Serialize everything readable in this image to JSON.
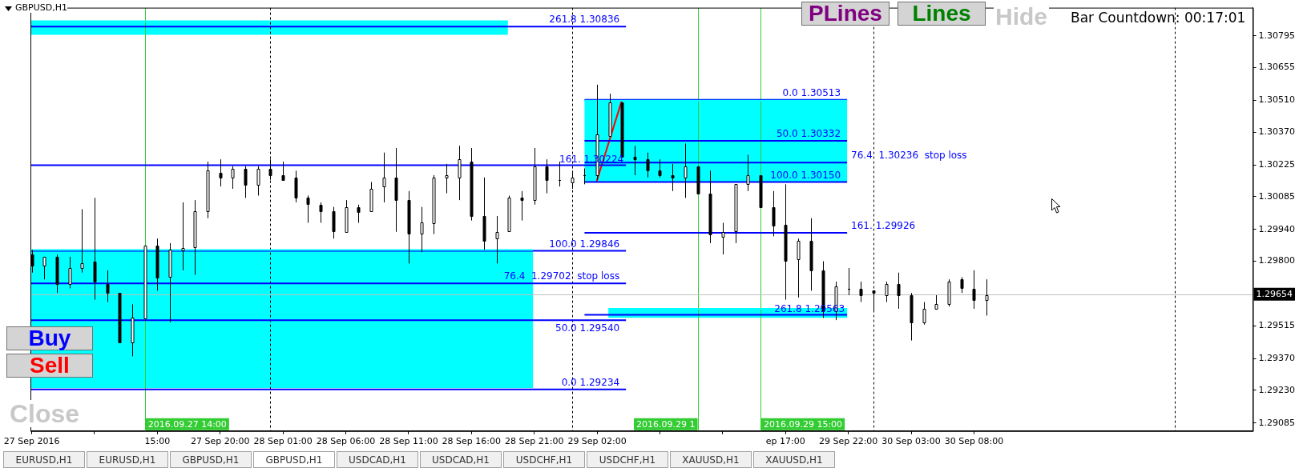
{
  "chart_data": {
    "type": "candlestick",
    "title": "GBPUSD,H1",
    "marker": "none",
    "x": [
      "2016-09-27T05:00",
      "2016-09-27T06:00",
      "2016-09-27T07:00",
      "2016-09-27T08:00",
      "2016-09-27T09:00",
      "2016-09-27T10:00",
      "2016-09-27T11:00",
      "2016-09-27T12:00",
      "2016-09-27T13:00",
      "2016-09-27T14:00",
      "2016-09-27T15:00",
      "2016-09-27T16:00",
      "2016-09-27T17:00",
      "2016-09-27T18:00",
      "2016-09-27T19:00",
      "2016-09-27T20:00",
      "2016-09-27T21:00",
      "2016-09-27T22:00",
      "2016-09-27T23:00",
      "2016-09-28T00:00",
      "2016-09-28T01:00",
      "2016-09-28T02:00",
      "2016-09-28T03:00",
      "2016-09-28T04:00",
      "2016-09-28T05:00",
      "2016-09-28T06:00",
      "2016-09-28T07:00",
      "2016-09-28T08:00",
      "2016-09-28T09:00",
      "2016-09-28T10:00",
      "2016-09-28T11:00",
      "2016-09-28T12:00",
      "2016-09-28T13:00",
      "2016-09-28T14:00",
      "2016-09-28T15:00",
      "2016-09-28T16:00",
      "2016-09-28T17:00",
      "2016-09-28T18:00",
      "2016-09-28T19:00",
      "2016-09-28T20:00",
      "2016-09-28T21:00",
      "2016-09-28T22:00",
      "2016-09-28T23:00",
      "2016-09-29T00:00",
      "2016-09-29T01:00",
      "2016-09-29T02:00",
      "2016-09-29T03:00",
      "2016-09-29T04:00",
      "2016-09-29T05:00",
      "2016-09-29T06:00",
      "2016-09-29T07:00",
      "2016-09-29T08:00",
      "2016-09-29T09:00",
      "2016-09-29T10:00",
      "2016-09-29T11:00",
      "2016-09-29T12:00",
      "2016-09-29T13:00",
      "2016-09-29T14:00",
      "2016-09-29T15:00",
      "2016-09-29T16:00",
      "2016-09-29T17:00",
      "2016-09-29T18:00",
      "2016-09-29T19:00",
      "2016-09-29T20:00",
      "2016-09-29T21:00",
      "2016-09-29T22:00",
      "2016-09-29T23:00",
      "2016-09-30T00:00",
      "2016-09-30T01:00",
      "2016-09-30T02:00",
      "2016-09-30T03:00",
      "2016-09-30T04:00",
      "2016-09-30T05:00",
      "2016-09-30T06:00",
      "2016-09-30T07:00",
      "2016-09-30T08:00",
      "2016-09-30T09:00"
    ],
    "ohlc": [
      [
        1.2983,
        1.2985,
        1.2975,
        1.2978
      ],
      [
        1.2978,
        1.2982,
        1.2972,
        1.2982
      ],
      [
        1.2982,
        1.2983,
        1.2966,
        1.297
      ],
      [
        1.297,
        1.2982,
        1.2968,
        1.2977
      ],
      [
        1.2977,
        1.3003,
        1.2975,
        1.2979
      ],
      [
        1.298,
        1.3008,
        1.2963,
        1.2971
      ],
      [
        1.297,
        1.2976,
        1.2962,
        1.2966
      ],
      [
        1.2966,
        1.2966,
        1.2944,
        1.2944
      ],
      [
        1.2944,
        1.2961,
        1.2938,
        1.2955
      ],
      [
        1.2955,
        1.2987,
        1.2955,
        1.2987
      ],
      [
        1.2987,
        1.299,
        1.2967,
        1.2973
      ],
      [
        1.2973,
        1.2988,
        1.2953,
        1.2985
      ],
      [
        1.2985,
        1.3006,
        1.2976,
        1.2986
      ],
      [
        1.2986,
        1.3007,
        1.2974,
        1.3002
      ],
      [
        1.3002,
        1.3024,
        1.2999,
        1.302
      ],
      [
        1.3019,
        1.3025,
        1.3013,
        1.3017
      ],
      [
        1.3017,
        1.3022,
        1.3012,
        1.3021
      ],
      [
        1.3021,
        1.3022,
        1.3008,
        1.3014
      ],
      [
        1.3014,
        1.3022,
        1.3009,
        1.3021
      ],
      [
        1.3021,
        1.3025,
        1.3016,
        1.3018
      ],
      [
        1.3018,
        1.3024,
        1.3016,
        1.3016
      ],
      [
        1.3017,
        1.302,
        1.3006,
        1.3008
      ],
      [
        1.3008,
        1.3009,
        1.2997,
        1.3005
      ],
      [
        1.3005,
        1.3006,
        1.2997,
        1.3002
      ],
      [
        1.3002,
        1.3004,
        1.299,
        1.2993
      ],
      [
        1.2993,
        1.3007,
        1.2993,
        1.3004
      ],
      [
        1.3004,
        1.3005,
        1.2997,
        1.3002
      ],
      [
        1.3002,
        1.3015,
        1.3002,
        1.3012
      ],
      [
        1.3013,
        1.3028,
        1.3006,
        1.3017
      ],
      [
        1.3017,
        1.303,
        1.2993,
        1.3007
      ],
      [
        1.3007,
        1.3011,
        1.2979,
        1.2992
      ],
      [
        1.2992,
        1.3004,
        1.2984,
        1.2997
      ],
      [
        1.2997,
        1.3018,
        1.2992,
        1.3017
      ],
      [
        1.3017,
        1.3023,
        1.301,
        1.3018
      ],
      [
        1.3017,
        1.3031,
        1.3007,
        1.3025
      ],
      [
        1.3024,
        1.303,
        1.2998,
        1.3
      ],
      [
        1.3,
        1.3017,
        1.2985,
        1.2989
      ],
      [
        1.299,
        1.3,
        1.2979,
        1.2993
      ],
      [
        1.2993,
        1.3009,
        1.2993,
        1.3008
      ],
      [
        1.3008,
        1.3011,
        1.2998,
        1.3007
      ],
      [
        1.3007,
        1.303,
        1.3005,
        1.3022
      ],
      [
        1.3022,
        1.3025,
        1.301,
        1.3016
      ],
      [
        1.3016,
        1.3024,
        1.3013,
        1.3016
      ],
      [
        1.3015,
        1.302,
        1.3012,
        1.3017
      ],
      [
        1.3018,
        1.3021,
        1.3014,
        1.3018
      ],
      [
        1.3018,
        1.3058,
        1.3016,
        1.3036
      ],
      [
        1.3035,
        1.3054,
        1.3035,
        1.305
      ],
      [
        1.305,
        1.305,
        1.3026,
        1.3026
      ],
      [
        1.3026,
        1.3031,
        1.3018,
        1.3025
      ],
      [
        1.3025,
        1.3028,
        1.3017,
        1.302
      ],
      [
        1.302,
        1.3025,
        1.3017,
        1.3018
      ],
      [
        1.3018,
        1.3023,
        1.3011,
        1.3017
      ],
      [
        1.3017,
        1.3032,
        1.3008,
        1.3022
      ],
      [
        1.3022,
        1.3022,
        1.301,
        1.301
      ],
      [
        1.301,
        1.302,
        1.2988,
        1.2992
      ],
      [
        1.2991,
        1.2997,
        1.2983,
        1.2993
      ],
      [
        1.2993,
        1.3014,
        1.2988,
        1.3014
      ],
      [
        1.3014,
        1.3027,
        1.3011,
        1.3018
      ],
      [
        1.3018,
        1.3018,
        1.3004,
        1.3004
      ],
      [
        1.3004,
        1.3011,
        1.2991,
        1.2996
      ],
      [
        1.2996,
        1.3014,
        1.2963,
        1.298
      ],
      [
        1.2981,
        1.299,
        1.2964,
        1.2989
      ],
      [
        1.2989,
        1.2999,
        1.2967,
        1.2976
      ],
      [
        1.2976,
        1.298,
        1.2955,
        1.2958
      ],
      [
        1.2958,
        1.2971,
        1.2954,
        1.2969
      ],
      [
        1.2968,
        1.2977,
        1.2965,
        1.2968
      ],
      [
        1.2968,
        1.2971,
        1.2962,
        1.2965
      ],
      [
        1.2967,
        1.2967,
        1.2958,
        1.2966
      ],
      [
        1.2965,
        1.2971,
        1.2962,
        1.297
      ],
      [
        1.297,
        1.2975,
        1.2959,
        1.2965
      ],
      [
        1.2965,
        1.2966,
        1.2945,
        1.2953
      ],
      [
        1.2953,
        1.2962,
        1.2952,
        1.2959
      ],
      [
        1.2959,
        1.2965,
        1.2959,
        1.2961
      ],
      [
        1.2961,
        1.2972,
        1.296,
        1.2971
      ],
      [
        1.2972,
        1.2973,
        1.2966,
        1.2968
      ],
      [
        1.2968,
        1.2976,
        1.2959,
        1.2963
      ],
      [
        1.2963,
        1.2972,
        1.2956,
        1.2965
      ]
    ],
    "xlim": [
      "2016-09-27T04:54",
      "2016-10-01T06:12"
    ],
    "xticks": [
      {
        "value": "2016-09-27T05:00",
        "label": "27 Sep 2016"
      },
      {
        "value": "2016-09-27T10:00",
        "label": null
      },
      {
        "value": "2016-09-27T15:00",
        "label": "15:00"
      },
      {
        "value": "2016-09-27T20:00",
        "label": "27 Sep 20:00"
      },
      {
        "value": "2016-09-28T01:00",
        "label": "28 Sep 01:00"
      },
      {
        "value": "2016-09-28T06:00",
        "label": "28 Sep 06:00"
      },
      {
        "value": "2016-09-28T11:00",
        "label": "28 Sep 11:00"
      },
      {
        "value": "2016-09-28T16:00",
        "label": "28 Sep 16:00"
      },
      {
        "value": "2016-09-28T21:00",
        "label": "28 Sep 21:00"
      },
      {
        "value": "2016-09-29T02:00",
        "label": "29 Sep 02:00"
      },
      {
        "value": "2016-09-29T07:00",
        "label": null
      },
      {
        "value": "2016-09-29T12:00",
        "label": null
      },
      {
        "value": "2016-09-29T17:00",
        "label": "ep 17:00"
      },
      {
        "value": "2016-09-29T22:00",
        "label": "29 Sep 22:00"
      },
      {
        "value": "2016-09-30T03:00",
        "label": "30 Sep 03:00"
      },
      {
        "value": "2016-09-30T08:00",
        "label": "30 Sep 08:00"
      }
    ],
    "ylim": [
      1.2905,
      1.3092
    ],
    "yticks": [
      {
        "value": 1.30795,
        "label": "1.30795"
      },
      {
        "value": 1.30655,
        "label": "1.30655"
      },
      {
        "value": 1.3051,
        "label": "1.30510"
      },
      {
        "value": 1.3037,
        "label": "1.30370"
      },
      {
        "value": 1.30225,
        "label": "1.30225"
      },
      {
        "value": 1.30085,
        "label": "1.30085"
      },
      {
        "value": 1.2994,
        "label": "1.29940"
      },
      {
        "value": 1.298,
        "label": "1.29800"
      },
      {
        "value": 1.29515,
        "label": "1.29515"
      },
      {
        "value": 1.2937,
        "label": "1.29370"
      },
      {
        "value": 1.2923,
        "label": "1.29230"
      },
      {
        "value": 1.29085,
        "label": "1.29085"
      }
    ],
    "series": [
      {
        "type": "line",
        "color": "#00ffff",
        "x": [
          "2016-09-27T04:54",
          "2016-09-28T18:54"
        ],
        "values": [
          1.3086,
          1.3086
        ],
        "upper": [
          1.3086,
          1.3086
        ],
        "lower": [
          1.308,
          1.308
        ]
      },
      {
        "type": "line",
        "color": "#00ffff",
        "x": [
          "2016-09-27T04:54",
          "2016-09-28T20:54"
        ],
        "values": [
          1.2985,
          1.2985
        ],
        "upper": [
          1.2985,
          1.2985
        ],
        "lower": [
          1.2924,
          1.2924
        ]
      },
      {
        "type": "line",
        "color": "#00ffff",
        "x": [
          "2016-09-29T01:00",
          "2016-09-29T21:54"
        ],
        "values": [
          1.3051,
          1.3051
        ],
        "upper": [
          1.3051,
          1.3051
        ],
        "lower": [
          1.3015,
          1.3015
        ]
      },
      {
        "type": "line",
        "color": "#00ffff",
        "x": [
          "2016-09-29T02:54",
          "2016-09-29T21:54"
        ],
        "values": [
          1.2959,
          1.2959
        ],
        "upper": [
          1.2959,
          1.2959
        ],
        "lower": [
          1.2955,
          1.2955
        ]
      },
      {
        "type": "line",
        "color": "#0000ff",
        "x": [
          "2016-09-27T04:54",
          "2016-09-29T04:18"
        ],
        "values": [
          1.30836,
          1.30836
        ]
      },
      {
        "type": "line",
        "color": "#0000ff",
        "x": [
          "2016-09-27T04:54",
          "2016-09-29T04:18"
        ],
        "values": [
          1.30224,
          1.30224
        ]
      },
      {
        "type": "line",
        "color": "#0000ff",
        "x": [
          "2016-09-27T04:54",
          "2016-09-29T04:18"
        ],
        "values": [
          1.29846,
          1.29846
        ]
      },
      {
        "type": "line",
        "color": "#0000ff",
        "x": [
          "2016-09-27T04:54",
          "2016-09-29T04:18"
        ],
        "values": [
          1.29702,
          1.29702
        ]
      },
      {
        "type": "line",
        "color": "#0000ff",
        "x": [
          "2016-09-27T04:54",
          "2016-09-29T04:18"
        ],
        "values": [
          1.2954,
          1.2954
        ]
      },
      {
        "type": "line",
        "color": "#0000ff",
        "x": [
          "2016-09-27T04:54",
          "2016-09-29T04:18"
        ],
        "values": [
          1.29234,
          1.29234
        ]
      },
      {
        "type": "line",
        "color": "#0000ff",
        "x": [
          "2016-09-29T01:00",
          "2016-09-29T21:54"
        ],
        "values": [
          1.30513,
          1.30513
        ]
      },
      {
        "type": "line",
        "color": "#0000ff",
        "x": [
          "2016-09-29T01:00",
          "2016-09-29T21:54"
        ],
        "values": [
          1.30332,
          1.30332
        ]
      },
      {
        "type": "line",
        "color": "#0000ff",
        "x": [
          "2016-09-29T01:00",
          "2016-09-29T21:54"
        ],
        "values": [
          1.30236,
          1.30236
        ]
      },
      {
        "type": "line",
        "color": "#0000ff",
        "x": [
          "2016-09-29T01:00",
          "2016-09-29T21:54"
        ],
        "values": [
          1.3015,
          1.3015
        ]
      },
      {
        "type": "line",
        "color": "#0000ff",
        "x": [
          "2016-09-29T01:00",
          "2016-09-29T21:54"
        ],
        "values": [
          1.29926,
          1.29926
        ]
      },
      {
        "type": "line",
        "color": "#0000ff",
        "x": [
          "2016-09-29T01:00",
          "2016-09-29T21:54"
        ],
        "values": [
          1.29563,
          1.29563
        ]
      },
      {
        "type": "line",
        "color": "#ff0000",
        "x": [
          "2016-09-29T01:57",
          "2016-09-29T03:58"
        ],
        "values": [
          1.3015,
          1.3051
        ]
      }
    ],
    "ref_lines": [
      {
        "axis": "x",
        "value": "2016-09-28T00:00",
        "color": "#000000",
        "line_style": "dashed"
      },
      {
        "axis": "x",
        "value": "2016-09-29T00:00",
        "color": "#000000",
        "line_style": "dashed"
      },
      {
        "axis": "x",
        "value": "2016-09-30T00:00",
        "color": "#000000",
        "line_style": "dashed"
      },
      {
        "axis": "x",
        "value": "2016-10-01T00:00",
        "color": "#000000",
        "line_style": "dashed"
      },
      {
        "axis": "x",
        "value": "2016-09-27T14:00",
        "label": "2016.09.27 14:00",
        "color": "#33cc33"
      },
      {
        "axis": "x",
        "value": "2016-09-29T10:00",
        "label": "2016.09.29 1",
        "color": "#33cc33"
      },
      {
        "axis": "x",
        "value": "2016-09-29T15:00",
        "label": "2016.09.29 15:00",
        "color": "#33cc33"
      },
      {
        "axis": "y",
        "value": 1.29654,
        "label": "1.29654",
        "color": "#c0c0c0"
      }
    ],
    "annotations": [
      "Buy",
      "Sell",
      "Close",
      "PLines",
      "Lines",
      "Hide",
      "Bar Countdown: 00:17:01",
      "EURUSD,H1",
      "EURUSD,H1",
      "GBPUSD,H1",
      "GBPUSD,H1",
      "USDCAD,H1",
      "USDCAD,H1",
      "USDCHF,H1",
      "USDCHF,H1",
      "XAUUSD,H1",
      "XAUUSD,H1",
      {
        "text": "261.8 1.30836",
        "x": "2016-09-29T04:18",
        "y": 1.30836
      },
      {
        "text": "161. 1.30224",
        "x": "2016-09-29T04:18",
        "y": 1.30224
      },
      {
        "text": "100.0 1.29846",
        "x": "2016-09-29T04:18",
        "y": 1.29846
      },
      {
        "text": "76.4  1.29702  stop loss",
        "x": "2016-09-29T04:18",
        "y": 1.29702
      },
      {
        "text": "50.0 1.29540",
        "x": "2016-09-29T04:18",
        "y": 1.2954
      },
      {
        "text": "0.0 1.29234",
        "x": "2016-09-29T04:18",
        "y": 1.29234
      },
      {
        "text": "0.0 1.30513",
        "x": "2016-09-29T21:54",
        "y": 1.30513
      },
      {
        "text": "50.0 1.30332",
        "x": "2016-09-29T21:54",
        "y": 1.30332
      },
      {
        "text": "76.4  1.30236  stop loss",
        "x": "2016-09-29T21:54",
        "y": 1.30236
      },
      {
        "text": "100.0 1.30150",
        "x": "2016-09-29T21:54",
        "y": 1.3015
      },
      {
        "text": "161. 1.29926",
        "x": "2016-09-29T21:54",
        "y": 1.29926
      },
      {
        "text": "261.8 1.29563",
        "x": "2016-09-29T21:54",
        "y": 1.29563
      }
    ]
  }
}
